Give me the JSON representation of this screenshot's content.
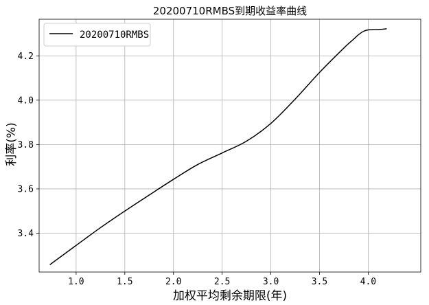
{
  "chart_data": {
    "type": "line",
    "title": "20200710RMBS到期收益率曲线",
    "xlabel": "加权平均剩余期限(年)",
    "ylabel": "利率(%)",
    "xlim": [
      0.62,
      4.54
    ],
    "ylim": [
      3.225,
      4.365
    ],
    "xticks": [
      1.0,
      1.5,
      2.0,
      2.5,
      3.0,
      3.5,
      4.0
    ],
    "xtick_labels": [
      "1.0",
      "1.5",
      "2.0",
      "2.5",
      "3.0",
      "3.5",
      "4.0"
    ],
    "yticks": [
      3.4,
      3.6,
      3.8,
      4.0,
      4.2
    ],
    "ytick_labels": [
      "3.4",
      "3.6",
      "3.8",
      "4.0",
      "4.2"
    ],
    "grid": true,
    "legend_position": "top-left",
    "series": [
      {
        "name": "20200710RMBS",
        "color": "#000000",
        "x": [
          0.73,
          1.0,
          1.25,
          1.5,
          1.75,
          2.0,
          2.25,
          2.5,
          2.75,
          3.0,
          3.25,
          3.5,
          3.75,
          3.85,
          3.9,
          3.95,
          4.0,
          4.1,
          4.19
        ],
        "y": [
          3.258,
          3.345,
          3.425,
          3.5,
          3.572,
          3.643,
          3.71,
          3.762,
          3.815,
          3.895,
          4.005,
          4.125,
          4.235,
          4.275,
          4.295,
          4.31,
          4.317,
          4.318,
          4.322
        ]
      }
    ]
  }
}
